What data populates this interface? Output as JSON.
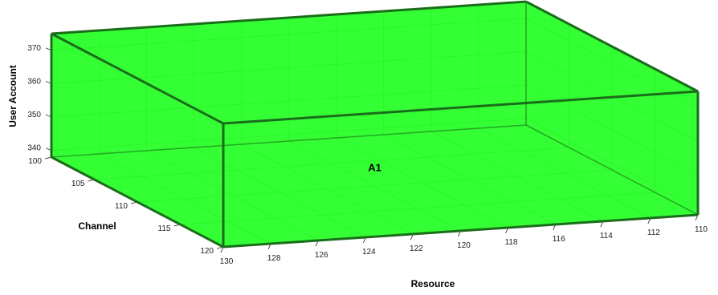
{
  "chart_data": {
    "type": "3d-box",
    "title": "",
    "xlabel": "Resource",
    "ylabel": "Channel",
    "zlabel": "User Account",
    "x_ticks": [
      130,
      128,
      126,
      124,
      122,
      120,
      118,
      116,
      114,
      112,
      110
    ],
    "y_ticks": [
      100,
      105,
      110,
      115,
      120
    ],
    "z_ticks": [
      340,
      350,
      360,
      370
    ],
    "xlim": [
      110,
      130
    ],
    "ylim": [
      100,
      120
    ],
    "zlim": [
      338,
      375
    ],
    "grid": true,
    "boxes": [
      {
        "name": "A1",
        "x_range": [
          110,
          130
        ],
        "y_range": [
          100,
          120
        ],
        "z_range": [
          338,
          375
        ],
        "color": "#00ff00",
        "edge_color": "#1a6e1a"
      }
    ]
  },
  "colors": {
    "background": "#ffffff",
    "grid": "#c8c8c8",
    "box_fill": "#00ff00",
    "box_edge": "#1a6e1a",
    "axis": "#555555"
  }
}
